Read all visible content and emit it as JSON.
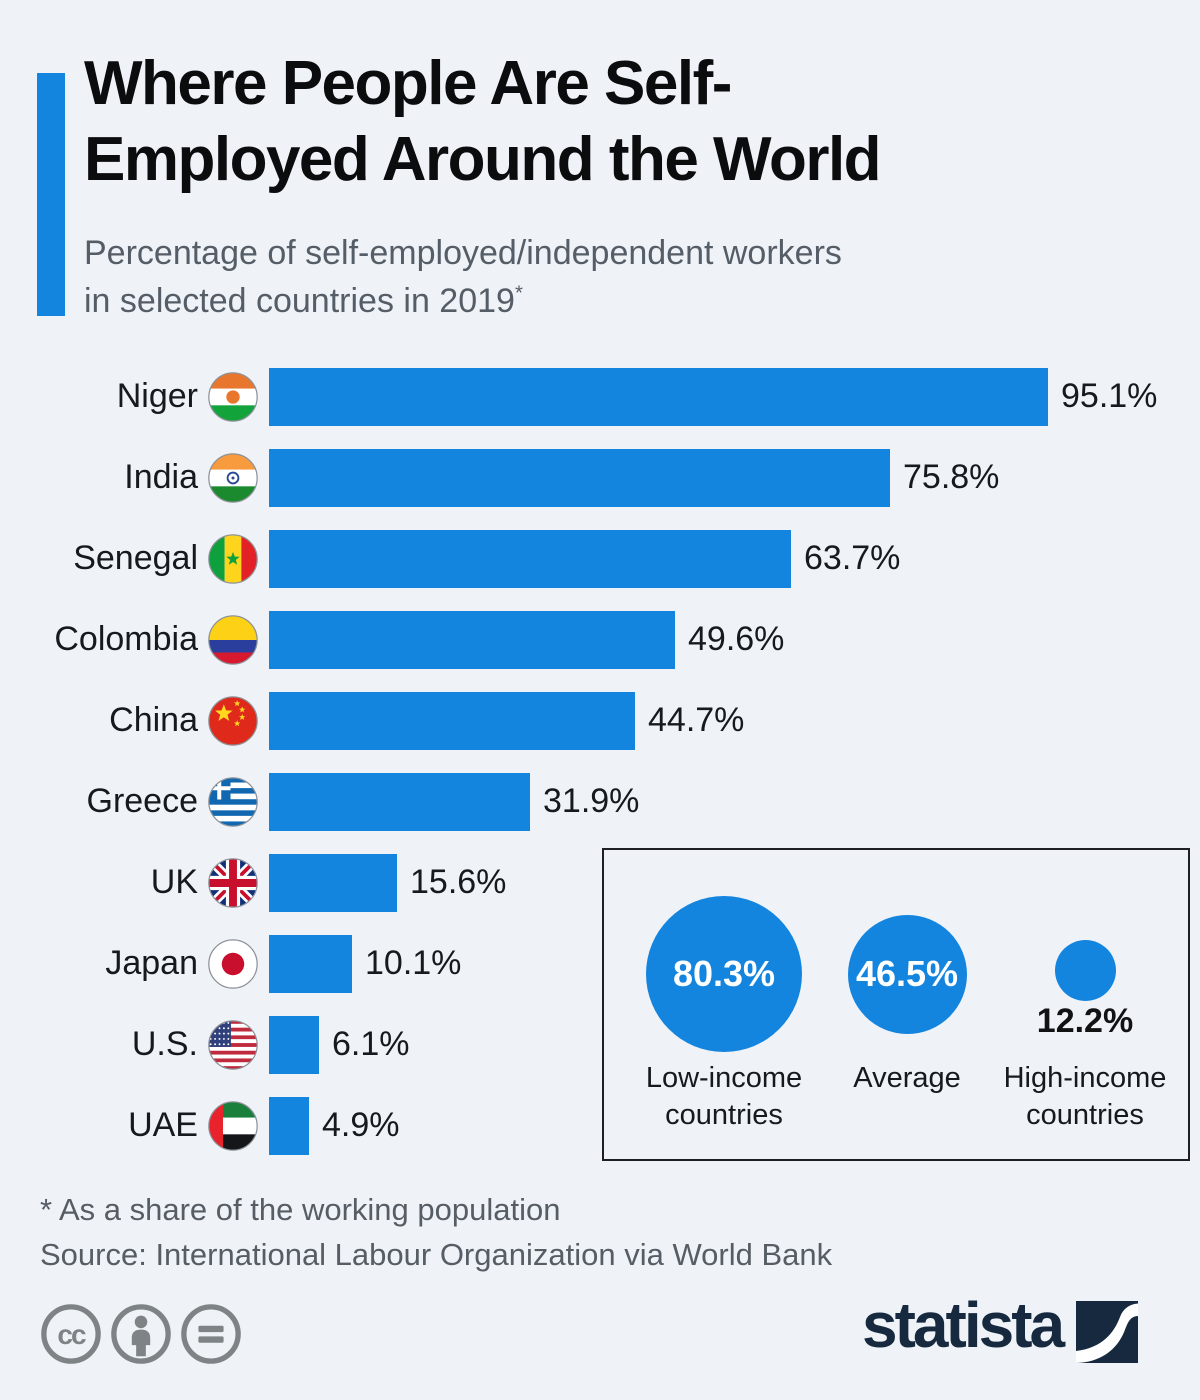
{
  "page": {
    "background_color": "#eff3f8",
    "accent_color": "#1485df"
  },
  "header": {
    "title_line1": "Where People Are Self-",
    "title_line2": "Employed Around the World",
    "subtitle_line1": "Percentage of self-employed/independent workers",
    "subtitle_line2": "in selected countries in 2019",
    "footnote_marker": "*"
  },
  "chart_data": {
    "type": "bar",
    "orientation": "horizontal",
    "title": "Where People Are Self-Employed Around the World",
    "subtitle": "Percentage of self-employed/independent workers in selected countries in 2019*",
    "unit": "%",
    "xlim": [
      0,
      100
    ],
    "grid": false,
    "legend": false,
    "bar_color": "#1485df",
    "categories": [
      "Niger",
      "India",
      "Senegal",
      "Colombia",
      "China",
      "Greece",
      "UK",
      "Japan",
      "U.S.",
      "UAE"
    ],
    "values": [
      95.1,
      75.8,
      63.7,
      49.6,
      44.7,
      31.9,
      15.6,
      10.1,
      6.1,
      4.9
    ],
    "value_labels": [
      "95.1%",
      "75.8%",
      "63.7%",
      "49.6%",
      "44.7%",
      "31.9%",
      "15.6%",
      "10.1%",
      "6.1%",
      "4.9%"
    ],
    "flag_icons": [
      "niger-flag-icon",
      "india-flag-icon",
      "senegal-flag-icon",
      "colombia-flag-icon",
      "china-flag-icon",
      "greece-flag-icon",
      "uk-flag-icon",
      "japan-flag-icon",
      "us-flag-icon",
      "uae-flag-icon"
    ],
    "bubble_inset": {
      "type": "bubble",
      "items": [
        {
          "label_line1": "Low-income",
          "label_line2": "countries",
          "value": 80.3,
          "value_label": "80.3%",
          "value_label_position": "inside"
        },
        {
          "label_line1": "Average",
          "label_line2": "",
          "value": 46.5,
          "value_label": "46.5%",
          "value_label_position": "inside"
        },
        {
          "label_line1": "High-income",
          "label_line2": "countries",
          "value": 12.2,
          "value_label": "12.2%",
          "value_label_position": "below"
        }
      ]
    }
  },
  "footer": {
    "footnote": "* As a share of the working population",
    "source": "Source: International Labour Organization via World Bank",
    "license_icons": [
      "cc-icon",
      "attribution-icon",
      "equals-icon"
    ],
    "brand_name": "statista"
  }
}
